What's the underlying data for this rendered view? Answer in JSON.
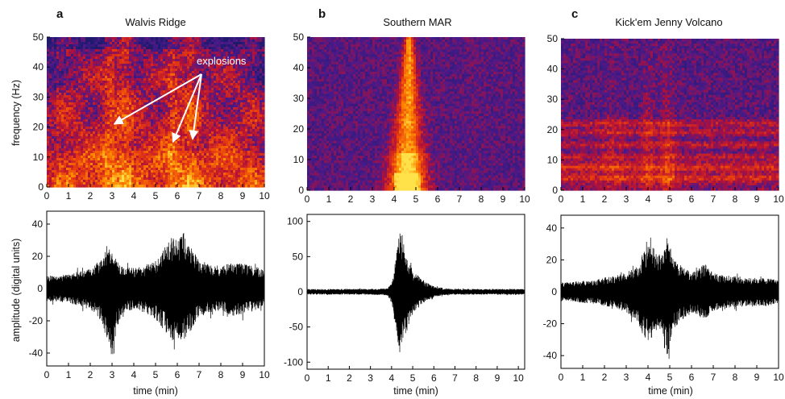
{
  "figure": {
    "panels": [
      {
        "letter": "a",
        "title": "Walvis Ridge"
      },
      {
        "letter": "b",
        "title": "Southern MAR"
      },
      {
        "letter": "c",
        "title": "Kick'em Jenny Volcano"
      }
    ],
    "spectrogram_ylabel": "frequency (Hz)",
    "waveform_ylabel": "amplitude (digital units)",
    "xlabel": "time (min)",
    "annotation": "explosions",
    "colormap": [
      "#1f1a6e",
      "#4a1a8a",
      "#b0103a",
      "#e63a10",
      "#ff8a00",
      "#ffe24a"
    ]
  },
  "chart_data": [
    {
      "type": "heatmap",
      "panel": "a",
      "title": "Walvis Ridge",
      "ylabel": "frequency (Hz)",
      "xlim": [
        0,
        10
      ],
      "ylim": [
        0,
        50
      ],
      "x_ticks": [
        0,
        1,
        2,
        3,
        4,
        5,
        6,
        7,
        8,
        9,
        10
      ],
      "y_ticks": [
        0,
        10,
        20,
        30,
        40,
        50
      ],
      "annotation": {
        "text": "explosions",
        "targets": [
          {
            "x": 3.1,
            "y": 21
          },
          {
            "x": 5.8,
            "y": 15
          },
          {
            "x": 6.7,
            "y": 16
          }
        ]
      }
    },
    {
      "type": "heatmap",
      "panel": "b",
      "title": "Southern MAR",
      "xlim": [
        0,
        10
      ],
      "ylim": [
        0,
        50
      ],
      "x_ticks": [
        0,
        1,
        2,
        3,
        4,
        5,
        6,
        7,
        8,
        9,
        10
      ],
      "y_ticks": [
        0,
        10,
        20,
        30,
        40,
        50
      ]
    },
    {
      "type": "heatmap",
      "panel": "c",
      "title": "Kick'em Jenny Volcano",
      "xlim": [
        0,
        10
      ],
      "ylim": [
        0,
        50
      ],
      "x_ticks": [
        0,
        1,
        2,
        3,
        4,
        5,
        6,
        7,
        8,
        9,
        10
      ],
      "y_ticks": [
        0,
        10,
        20,
        30,
        40,
        50
      ]
    },
    {
      "type": "line",
      "panel": "a",
      "ylabel": "amplitude (digital units)",
      "xlabel": "time (min)",
      "xlim": [
        0,
        10
      ],
      "ylim": [
        -48,
        48
      ],
      "x_ticks": [
        0,
        1,
        2,
        3,
        4,
        5,
        6,
        7,
        8,
        9,
        10
      ],
      "y_ticks": [
        -40,
        -20,
        0,
        20,
        40
      ],
      "envelope": {
        "x": [
          0,
          0.5,
          1,
          1.5,
          2,
          2.5,
          2.8,
          3,
          3.2,
          3.5,
          4,
          4.5,
          5,
          5.5,
          5.8,
          6,
          6.3,
          6.6,
          7,
          7.5,
          8,
          8.5,
          9,
          9.5,
          10
        ],
        "upper": [
          8,
          8,
          9,
          11,
          12,
          18,
          28,
          22,
          18,
          14,
          13,
          14,
          17,
          27,
          32,
          30,
          35,
          26,
          18,
          15,
          14,
          16,
          16,
          14,
          12
        ],
        "lower": [
          -8,
          -8,
          -9,
          -11,
          -13,
          -20,
          -32,
          -44,
          -26,
          -15,
          -13,
          -15,
          -19,
          -28,
          -33,
          -30,
          -34,
          -27,
          -18,
          -15,
          -14,
          -17,
          -16,
          -14,
          -12
        ]
      }
    },
    {
      "type": "line",
      "panel": "b",
      "xlabel": "time (min)",
      "xlim": [
        0,
        10.3
      ],
      "ylim": [
        -110,
        110
      ],
      "x_ticks": [
        0,
        1,
        2,
        3,
        4,
        5,
        6,
        7,
        8,
        9,
        10
      ],
      "y_ticks": [
        -100,
        -50,
        0,
        50,
        100
      ],
      "envelope": {
        "x": [
          0,
          1,
          2,
          3,
          3.8,
          4,
          4.2,
          4.4,
          4.6,
          4.8,
          5,
          5.3,
          5.6,
          6,
          6.5,
          7,
          8,
          9,
          10.3
        ],
        "upper": [
          4,
          4,
          4,
          4,
          5,
          14,
          50,
          98,
          65,
          45,
          30,
          22,
          14,
          8,
          5,
          4,
          4,
          4,
          4
        ],
        "lower": [
          -4,
          -4,
          -4,
          -4,
          -5,
          -16,
          -55,
          -88,
          -70,
          -48,
          -32,
          -22,
          -14,
          -8,
          -5,
          -4,
          -4,
          -4,
          -4
        ]
      }
    },
    {
      "type": "line",
      "panel": "c",
      "xlabel": "time (min)",
      "xlim": [
        0,
        10
      ],
      "ylim": [
        -48,
        48
      ],
      "x_ticks": [
        0,
        1,
        2,
        3,
        4,
        5,
        6,
        7,
        8,
        9,
        10
      ],
      "y_ticks": [
        -40,
        -20,
        0,
        20,
        40
      ],
      "envelope": {
        "x": [
          0,
          0.5,
          1,
          1.5,
          2,
          2.5,
          3,
          3.5,
          3.8,
          4,
          4.3,
          4.6,
          4.9,
          5.1,
          5.4,
          5.8,
          6.2,
          6.6,
          7,
          7.5,
          8,
          8.5,
          9,
          9.5,
          10
        ],
        "upper": [
          6,
          6,
          7,
          7,
          9,
          10,
          12,
          16,
          24,
          30,
          28,
          22,
          35,
          24,
          18,
          14,
          13,
          18,
          12,
          10,
          10,
          9,
          8,
          9,
          7
        ],
        "lower": [
          -6,
          -6,
          -7,
          -7,
          -9,
          -10,
          -13,
          -18,
          -28,
          -32,
          -28,
          -24,
          -46,
          -26,
          -20,
          -15,
          -14,
          -18,
          -12,
          -10,
          -10,
          -9,
          -9,
          -9,
          -7
        ]
      }
    }
  ]
}
